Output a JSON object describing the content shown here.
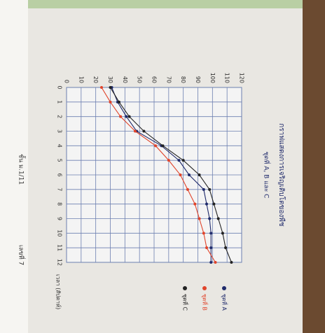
{
  "chart_data": {
    "type": "line",
    "title": "กราฟแสดงการเจริญเติบโตของพืช",
    "subtitle": "ชุดที่ A, B และ C",
    "x_label": "เวลา (สัปดาห์)",
    "x": [
      0,
      1,
      2,
      3,
      4,
      5,
      6,
      7,
      8,
      9,
      10,
      11,
      12
    ],
    "xlim": [
      0,
      12
    ],
    "xticks": [
      0,
      1,
      2,
      3,
      4,
      5,
      6,
      7,
      8,
      9,
      10,
      11,
      12
    ],
    "ylim": [
      0,
      120
    ],
    "yticks": [
      0,
      10,
      20,
      30,
      40,
      50,
      60,
      70,
      80,
      90,
      100,
      110,
      120
    ],
    "grid": true,
    "series": [
      {
        "name": "ชุดที่ A",
        "color": "#1f2a6b",
        "values": [
          31,
          35,
          41,
          48,
          65,
          77,
          84,
          94,
          96,
          98,
          99,
          99,
          99
        ]
      },
      {
        "name": "ชุดที่ B",
        "color": "#e0442b",
        "values": [
          24,
          30,
          37,
          47,
          61,
          70,
          78,
          83,
          88,
          91,
          94,
          96,
          102
        ]
      },
      {
        "name": "ชุดที่ C",
        "color": "#222222",
        "values": [
          30,
          36,
          43,
          53,
          66,
          80,
          91,
          98,
          101,
          104,
          107,
          109,
          113
        ]
      }
    ],
    "footer": [
      "ชั้น ม.1/11",
      "เลขที่ 7"
    ]
  }
}
